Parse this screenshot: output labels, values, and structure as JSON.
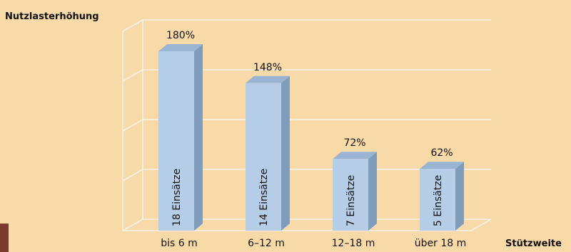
{
  "chart_data": {
    "type": "bar",
    "ylabel": "Nutzlasterhöhung",
    "xlabel": "Stützweite",
    "categories": [
      "bis 6 m",
      "6–12 m",
      "12–18 m",
      "über 18 m"
    ],
    "values": [
      180,
      148,
      72,
      62
    ],
    "value_labels": [
      "180%",
      "148%",
      "72%",
      "62%"
    ],
    "inside_labels": [
      "18 Einsätze",
      "14 Einsätze",
      "7 Einsätze",
      "5 Einsätze"
    ],
    "unit": "%",
    "ylim": [
      0,
      200
    ],
    "grid": true,
    "colors": {
      "bar_front": "#b6cde8",
      "bar_side": "#7f9dbb",
      "bar_top": "#9ab5d4",
      "grid": "#f5f0e8",
      "background": "#f8d9a8",
      "corner_accent": "#7a3a2c"
    }
  }
}
